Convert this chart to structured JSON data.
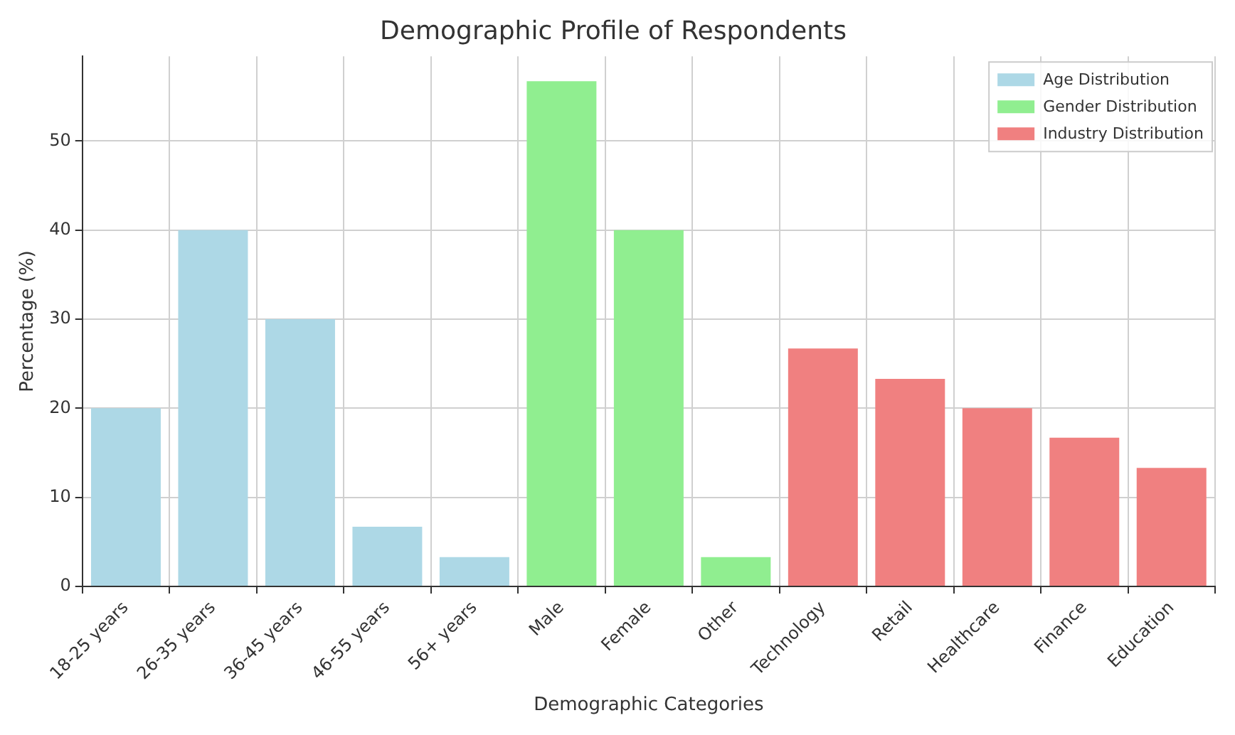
{
  "chart_data": {
    "type": "bar",
    "title": "Demographic Profile of Respondents",
    "xlabel": "Demographic Categories",
    "ylabel": "Percentage (%)",
    "categories": [
      "18-25 years",
      "26-35 years",
      "36-45 years",
      "46-55 years",
      "56+ years",
      "Male",
      "Female",
      "Other",
      "Technology",
      "Retail",
      "Healthcare",
      "Finance",
      "Education"
    ],
    "series": [
      {
        "name": "Age Distribution",
        "color": "#add8e6",
        "values": [
          20,
          40,
          30,
          6.7,
          3.3,
          null,
          null,
          null,
          null,
          null,
          null,
          null,
          null
        ]
      },
      {
        "name": "Gender Distribution",
        "color": "#90ee90",
        "values": [
          null,
          null,
          null,
          null,
          null,
          56.7,
          40,
          3.3,
          null,
          null,
          null,
          null,
          null
        ]
      },
      {
        "name": "Industry Distribution",
        "color": "#f08080",
        "values": [
          null,
          null,
          null,
          null,
          null,
          null,
          null,
          null,
          26.7,
          23.3,
          20,
          16.7,
          13.3
        ]
      }
    ],
    "ylim": [
      0,
      59.5
    ],
    "yticks": [
      0,
      10,
      20,
      30,
      40,
      50
    ],
    "grid": true,
    "legend": "top right"
  }
}
